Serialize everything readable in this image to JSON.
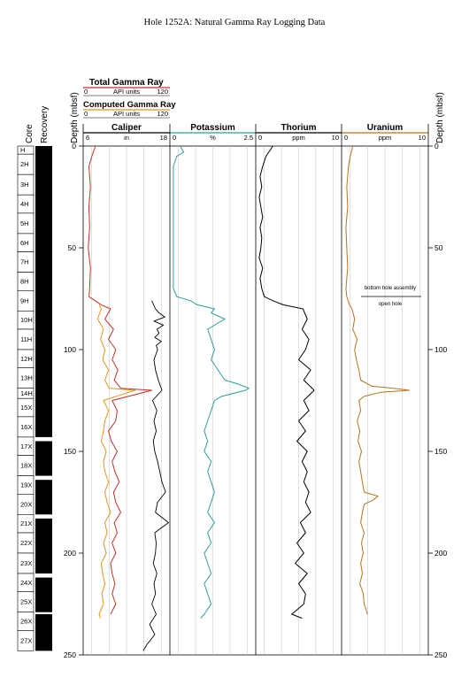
{
  "title": "Hole 1252A: Natural Gamma Ray Logging Data",
  "legend": {
    "total": {
      "label": "Total Gamma Ray",
      "min": "0",
      "unit": "API units",
      "max": "120",
      "color": "#c0302a"
    },
    "computed": {
      "label": "Computed Gamma Ray",
      "min": "0",
      "unit": "API units",
      "max": "120",
      "color": "#e8941a"
    }
  },
  "labels": {
    "core": "Core",
    "recovery": "Recovery",
    "depth_left": "Depth (mbsf)",
    "depth_right": "Depth (mbsf)",
    "bha": "bottom hole assembly",
    "open_hole": "open hole"
  },
  "depth_ticks": [
    "0",
    "50",
    "100",
    "150",
    "200",
    "250"
  ],
  "tracks": [
    {
      "id": "caliper",
      "title": "Caliper",
      "min": "6",
      "unit": "in",
      "max": "18",
      "color": "#000000"
    },
    {
      "id": "potassium",
      "title": "Potassium",
      "min": "0",
      "unit": "%",
      "max": "2.5",
      "color": "#2a9d9b"
    },
    {
      "id": "thorium",
      "title": "Thorium",
      "min": "0",
      "unit": "ppm",
      "max": "10",
      "color": "#000000"
    },
    {
      "id": "uranium",
      "title": "Uranium",
      "min": "0",
      "unit": "ppm",
      "max": "10",
      "color": "#b8741a"
    }
  ],
  "cores": [
    {
      "name": "H",
      "top": 0,
      "bottom": 4
    },
    {
      "name": "2H",
      "top": 4,
      "bottom": 14
    },
    {
      "name": "3H",
      "top": 14,
      "bottom": 24
    },
    {
      "name": "4H",
      "top": 24,
      "bottom": 33
    },
    {
      "name": "5H",
      "top": 33,
      "bottom": 43
    },
    {
      "name": "6H",
      "top": 43,
      "bottom": 52
    },
    {
      "name": "7H",
      "top": 52,
      "bottom": 62
    },
    {
      "name": "8H",
      "top": 62,
      "bottom": 71
    },
    {
      "name": "9H",
      "top": 71,
      "bottom": 81
    },
    {
      "name": "10H",
      "top": 81,
      "bottom": 90
    },
    {
      "name": "11H",
      "top": 90,
      "bottom": 100
    },
    {
      "name": "12H",
      "top": 100,
      "bottom": 109
    },
    {
      "name": "13H",
      "top": 109,
      "bottom": 119
    },
    {
      "name": "14H",
      "top": 119,
      "bottom": 124
    },
    {
      "name": "15X",
      "top": 124,
      "bottom": 133
    },
    {
      "name": "16X",
      "top": 133,
      "bottom": 143
    },
    {
      "name": "17X",
      "top": 143,
      "bottom": 152
    },
    {
      "name": "18X",
      "top": 152,
      "bottom": 162
    },
    {
      "name": "19X",
      "top": 162,
      "bottom": 171
    },
    {
      "name": "20X",
      "top": 171,
      "bottom": 181
    },
    {
      "name": "21X",
      "top": 181,
      "bottom": 190
    },
    {
      "name": "22X",
      "top": 190,
      "bottom": 200
    },
    {
      "name": "23X",
      "top": 200,
      "bottom": 210
    },
    {
      "name": "24X",
      "top": 210,
      "bottom": 219
    },
    {
      "name": "25X",
      "top": 219,
      "bottom": 229
    },
    {
      "name": "26X",
      "top": 229,
      "bottom": 238
    },
    {
      "name": "27X",
      "top": 238,
      "bottom": 248
    }
  ],
  "recovery_gaps": [
    [
      143,
      145
    ],
    [
      162,
      164
    ],
    [
      181,
      183
    ],
    [
      210,
      212
    ],
    [
      229,
      230
    ]
  ],
  "chart_data": {
    "type": "line",
    "title": "Hole 1252A: Natural Gamma Ray Logging Data",
    "depth_axis": {
      "label": "Depth (mbsf)",
      "range": [
        0,
        250
      ],
      "reversed": true
    },
    "grid": true,
    "annotation": {
      "depth": 74,
      "above": "bottom hole assembly",
      "below": "open hole"
    },
    "series": [
      {
        "name": "Caliper",
        "unit": "in",
        "range": [
          6,
          18
        ],
        "depth": [
          76,
          80,
          82,
          84,
          86,
          88,
          90,
          92,
          94,
          96,
          98,
          100,
          105,
          110,
          115,
          120,
          125,
          130,
          135,
          140,
          145,
          150,
          155,
          160,
          165,
          170,
          175,
          180,
          185,
          190,
          195,
          200,
          205,
          210,
          215,
          220,
          225,
          230,
          235,
          240,
          245,
          248
        ],
        "values": [
          15.5,
          16.0,
          16.5,
          17.3,
          15.8,
          17.1,
          16.2,
          16.5,
          15.9,
          16.8,
          16.1,
          16.3,
          15.8,
          16.0,
          16.4,
          16.9,
          15.6,
          16.2,
          15.8,
          16.1,
          15.7,
          15.9,
          16.3,
          16.6,
          16.9,
          17.4,
          16.3,
          16.0,
          17.8,
          15.9,
          16.1,
          16.0,
          15.7,
          16.2,
          15.8,
          16.0,
          15.5,
          16.1,
          15.2,
          15.9,
          14.8,
          14.3
        ]
      },
      {
        "name": "Total Gamma Ray",
        "unit": "API units",
        "range": [
          0,
          120
        ],
        "depth": [
          0,
          5,
          10,
          20,
          30,
          40,
          50,
          60,
          70,
          74,
          78,
          80,
          85,
          90,
          95,
          100,
          105,
          110,
          115,
          119,
          120,
          125,
          130,
          135,
          140,
          145,
          150,
          155,
          160,
          165,
          170,
          175,
          180,
          185,
          190,
          195,
          200,
          205,
          210,
          215,
          220,
          225,
          230
        ],
        "values": [
          17,
          12,
          8,
          10,
          8,
          9,
          7,
          10,
          9,
          8,
          25,
          38,
          30,
          42,
          35,
          45,
          40,
          48,
          43,
          52,
          95,
          40,
          47,
          45,
          35,
          39,
          47,
          40,
          44,
          50,
          42,
          45,
          52,
          43,
          47,
          40,
          45,
          38,
          40,
          44,
          40,
          45,
          38
        ]
      },
      {
        "name": "Computed Gamma Ray",
        "unit": "API units",
        "range": [
          0,
          120
        ],
        "depth": [
          78,
          80,
          85,
          90,
          95,
          100,
          105,
          110,
          115,
          119,
          120,
          125,
          130,
          135,
          140,
          145,
          150,
          155,
          160,
          165,
          170,
          175,
          180,
          185,
          190,
          195,
          200,
          205,
          210,
          215,
          220,
          225,
          230,
          232
        ],
        "values": [
          22,
          25,
          20,
          28,
          24,
          30,
          27,
          35,
          30,
          36,
          72,
          28,
          35,
          30,
          28,
          25,
          32,
          28,
          30,
          35,
          30,
          33,
          38,
          30,
          33,
          28,
          32,
          25,
          27,
          30,
          26,
          28,
          22,
          24
        ]
      },
      {
        "name": "Potassium",
        "unit": "%",
        "range": [
          0,
          2.5
        ],
        "depth": [
          0,
          3,
          5,
          10,
          20,
          30,
          40,
          50,
          60,
          70,
          74,
          76,
          78,
          80,
          82,
          85,
          90,
          95,
          100,
          105,
          110,
          115,
          117,
          119,
          120,
          123,
          125,
          130,
          135,
          140,
          145,
          150,
          155,
          160,
          165,
          170,
          175,
          180,
          185,
          190,
          195,
          200,
          205,
          210,
          215,
          220,
          225,
          230,
          232
        ],
        "values": [
          0.3,
          0.4,
          0.2,
          0.1,
          0.1,
          0.1,
          0.1,
          0.1,
          0.1,
          0.1,
          0.2,
          0.6,
          0.8,
          1.3,
          1.2,
          1.6,
          1.1,
          1.2,
          1.3,
          1.2,
          1.4,
          1.6,
          2.0,
          2.3,
          2.2,
          1.5,
          1.3,
          1.2,
          1.1,
          1.0,
          1.1,
          1.0,
          1.2,
          1.1,
          1.2,
          1.3,
          1.2,
          1.1,
          1.3,
          1.1,
          1.2,
          1.0,
          1.1,
          1.2,
          1.0,
          1.1,
          1.2,
          1.0,
          0.9
        ]
      },
      {
        "name": "Thorium",
        "unit": "ppm",
        "range": [
          0,
          10
        ],
        "depth": [
          0,
          5,
          10,
          15,
          20,
          25,
          30,
          35,
          40,
          45,
          50,
          55,
          60,
          65,
          70,
          74,
          76,
          78,
          80,
          85,
          90,
          95,
          100,
          105,
          110,
          115,
          120,
          125,
          130,
          135,
          140,
          145,
          150,
          155,
          160,
          165,
          170,
          175,
          180,
          185,
          190,
          195,
          200,
          205,
          210,
          215,
          220,
          225,
          230,
          232
        ],
        "values": [
          2.0,
          1.2,
          0.8,
          0.5,
          0.7,
          0.4,
          0.6,
          0.8,
          0.5,
          0.7,
          0.6,
          0.4,
          0.8,
          0.5,
          0.7,
          1.0,
          2.0,
          3.2,
          5.5,
          6.0,
          5.4,
          6.2,
          5.8,
          5.0,
          6.4,
          5.6,
          6.8,
          5.6,
          6.2,
          5.0,
          5.8,
          4.8,
          6.0,
          5.4,
          6.0,
          5.6,
          6.2,
          5.8,
          6.4,
          5.2,
          5.8,
          4.8,
          5.6,
          4.6,
          6.0,
          5.0,
          5.8,
          5.6,
          4.2,
          5.4
        ]
      },
      {
        "name": "Uranium",
        "unit": "ppm",
        "range": [
          0,
          10
        ],
        "depth": [
          0,
          5,
          10,
          20,
          30,
          40,
          50,
          60,
          70,
          74,
          78,
          80,
          85,
          90,
          95,
          100,
          105,
          110,
          115,
          118,
          119,
          120,
          121,
          123,
          125,
          130,
          135,
          140,
          145,
          150,
          155,
          160,
          165,
          170,
          172,
          174,
          176,
          180,
          185,
          190,
          195,
          200,
          205,
          210,
          215,
          220,
          225,
          230
        ],
        "values": [
          1.3,
          1.0,
          0.8,
          0.6,
          0.7,
          0.5,
          0.6,
          0.7,
          0.5,
          0.6,
          0.9,
          1.2,
          1.5,
          1.3,
          1.8,
          1.5,
          1.7,
          2.0,
          2.2,
          3.5,
          6.0,
          7.8,
          4.5,
          2.6,
          2.0,
          2.2,
          1.8,
          2.1,
          1.9,
          2.3,
          2.0,
          2.2,
          2.4,
          2.6,
          4.2,
          3.6,
          2.6,
          2.4,
          2.2,
          2.6,
          2.3,
          2.5,
          2.2,
          2.4,
          2.1,
          2.5,
          2.6,
          3.0
        ]
      }
    ]
  }
}
